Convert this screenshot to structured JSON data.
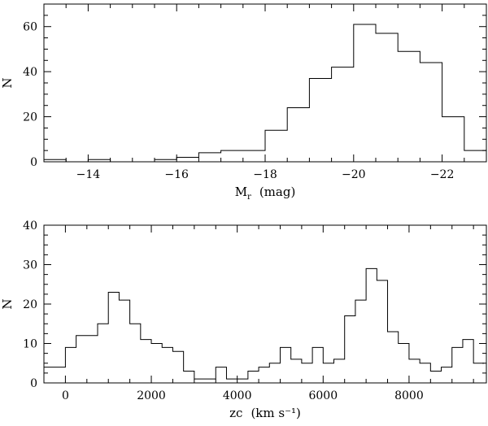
{
  "chart_data": [
    {
      "type": "histogram",
      "xlabel_main": "M",
      "xlabel_sub": "r",
      "xlabel_unit": "(mag)",
      "ylabel": "N",
      "xlim": [
        -13,
        -23
      ],
      "ylim": [
        0,
        70
      ],
      "x_ticks": [
        -14,
        -16,
        -18,
        -20,
        -22
      ],
      "y_ticks": [
        0,
        20,
        40,
        60
      ],
      "bin_edges": [
        -13,
        -13.5,
        -14,
        -14.5,
        -15,
        -15.5,
        -16,
        -16.5,
        -17,
        -17.5,
        -18,
        -18.5,
        -19,
        -19.5,
        -20,
        -20.5,
        -21,
        -21.5,
        -22,
        -22.5,
        -23
      ],
      "counts": [
        1,
        0,
        1,
        0,
        0,
        1,
        2,
        4,
        5,
        5,
        14,
        24,
        37,
        42,
        61,
        57,
        49,
        44,
        20,
        5
      ]
    },
    {
      "type": "histogram",
      "xlabel_main": "zc",
      "xlabel_unit": "(km s⁻¹)",
      "ylabel": "N",
      "xlim": [
        -500,
        9800
      ],
      "ylim": [
        0,
        40
      ],
      "x_ticks": [
        0,
        2000,
        4000,
        6000,
        8000
      ],
      "y_ticks": [
        0,
        10,
        20,
        30,
        40
      ],
      "bin_edges": [
        -500,
        -250,
        0,
        250,
        500,
        750,
        1000,
        1250,
        1500,
        1750,
        2000,
        2250,
        2500,
        2750,
        3000,
        3250,
        3500,
        3750,
        4000,
        4250,
        4500,
        4750,
        5000,
        5250,
        5500,
        5750,
        6000,
        6250,
        6500,
        6750,
        7000,
        7250,
        7500,
        7750,
        8000,
        8250,
        8500,
        8750,
        9000,
        9250,
        9500,
        9750
      ],
      "counts": [
        4,
        4,
        9,
        12,
        12,
        15,
        23,
        21,
        15,
        11,
        10,
        9,
        8,
        3,
        1,
        1,
        4,
        1,
        1,
        3,
        4,
        5,
        9,
        6,
        5,
        9,
        5,
        6,
        17,
        21,
        29,
        26,
        13,
        10,
        6,
        5,
        3,
        4,
        9,
        11,
        5
      ]
    }
  ]
}
